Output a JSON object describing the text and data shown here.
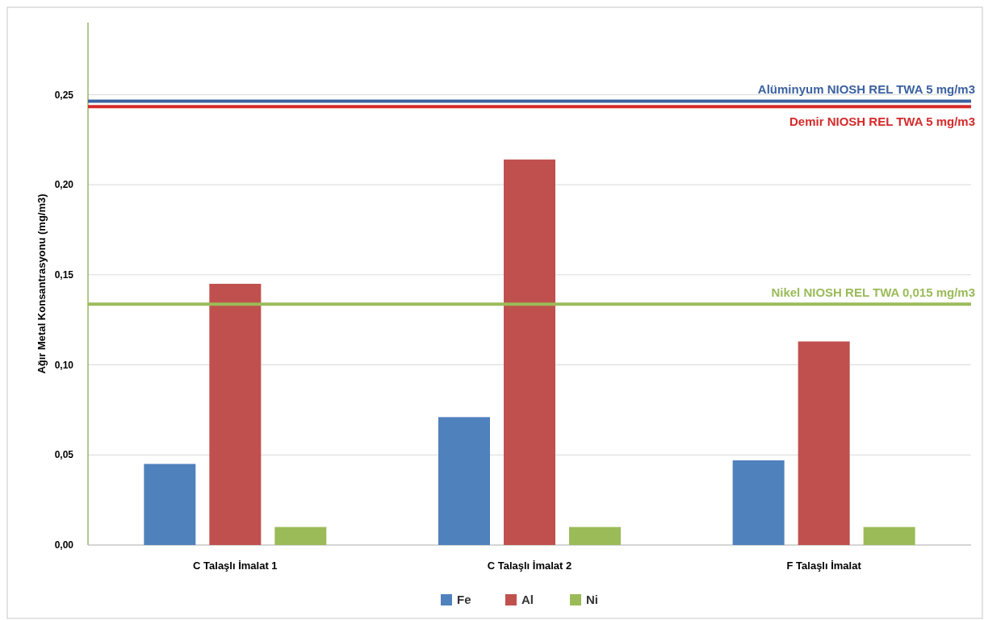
{
  "chart_data": {
    "type": "bar",
    "ylabel": "Ağır Metal Konsantrasyonu (mg/m3)",
    "categories": [
      "C Talaşlı İmalat 1",
      "C Talaşlı İmalat 2",
      "F Talaşlı İmalat"
    ],
    "series": [
      {
        "name": "Fe",
        "color": "#4f81bd",
        "values": [
          0.045,
          0.071,
          0.047
        ]
      },
      {
        "name": "Al",
        "color": "#c0504d",
        "values": [
          0.145,
          0.214,
          0.113
        ]
      },
      {
        "name": "Ni",
        "color": "#9bbb59",
        "values": [
          0.01,
          0.01,
          0.01
        ]
      }
    ],
    "ylim": [
      0,
      0.29
    ],
    "yticks": [
      {
        "value": 0,
        "label": "0,00"
      },
      {
        "value": 0.05,
        "label": "0,05"
      },
      {
        "value": 0.1,
        "label": "0,10"
      },
      {
        "value": 0.15,
        "label": "0,15"
      },
      {
        "value": 0.2,
        "label": "0,20"
      },
      {
        "value": 0.25,
        "label": "0,25"
      }
    ],
    "grid": "y",
    "legend": "bottom",
    "ref_lines": [
      {
        "axis": "y",
        "value": 0.2464,
        "label": "Alüminyum NIOSH REL TWA 5 mg/m3",
        "color": "#3c62a0"
      },
      {
        "axis": "y",
        "value": 0.2433,
        "label": "Demir NIOSH REL TWA 5 mg/m3",
        "color": "#d52a2a"
      },
      {
        "axis": "y",
        "value": 0.1337,
        "label": "Nikel NIOSH REL TWA 0,015 mg/m3",
        "color": "#9bbb59"
      }
    ]
  }
}
